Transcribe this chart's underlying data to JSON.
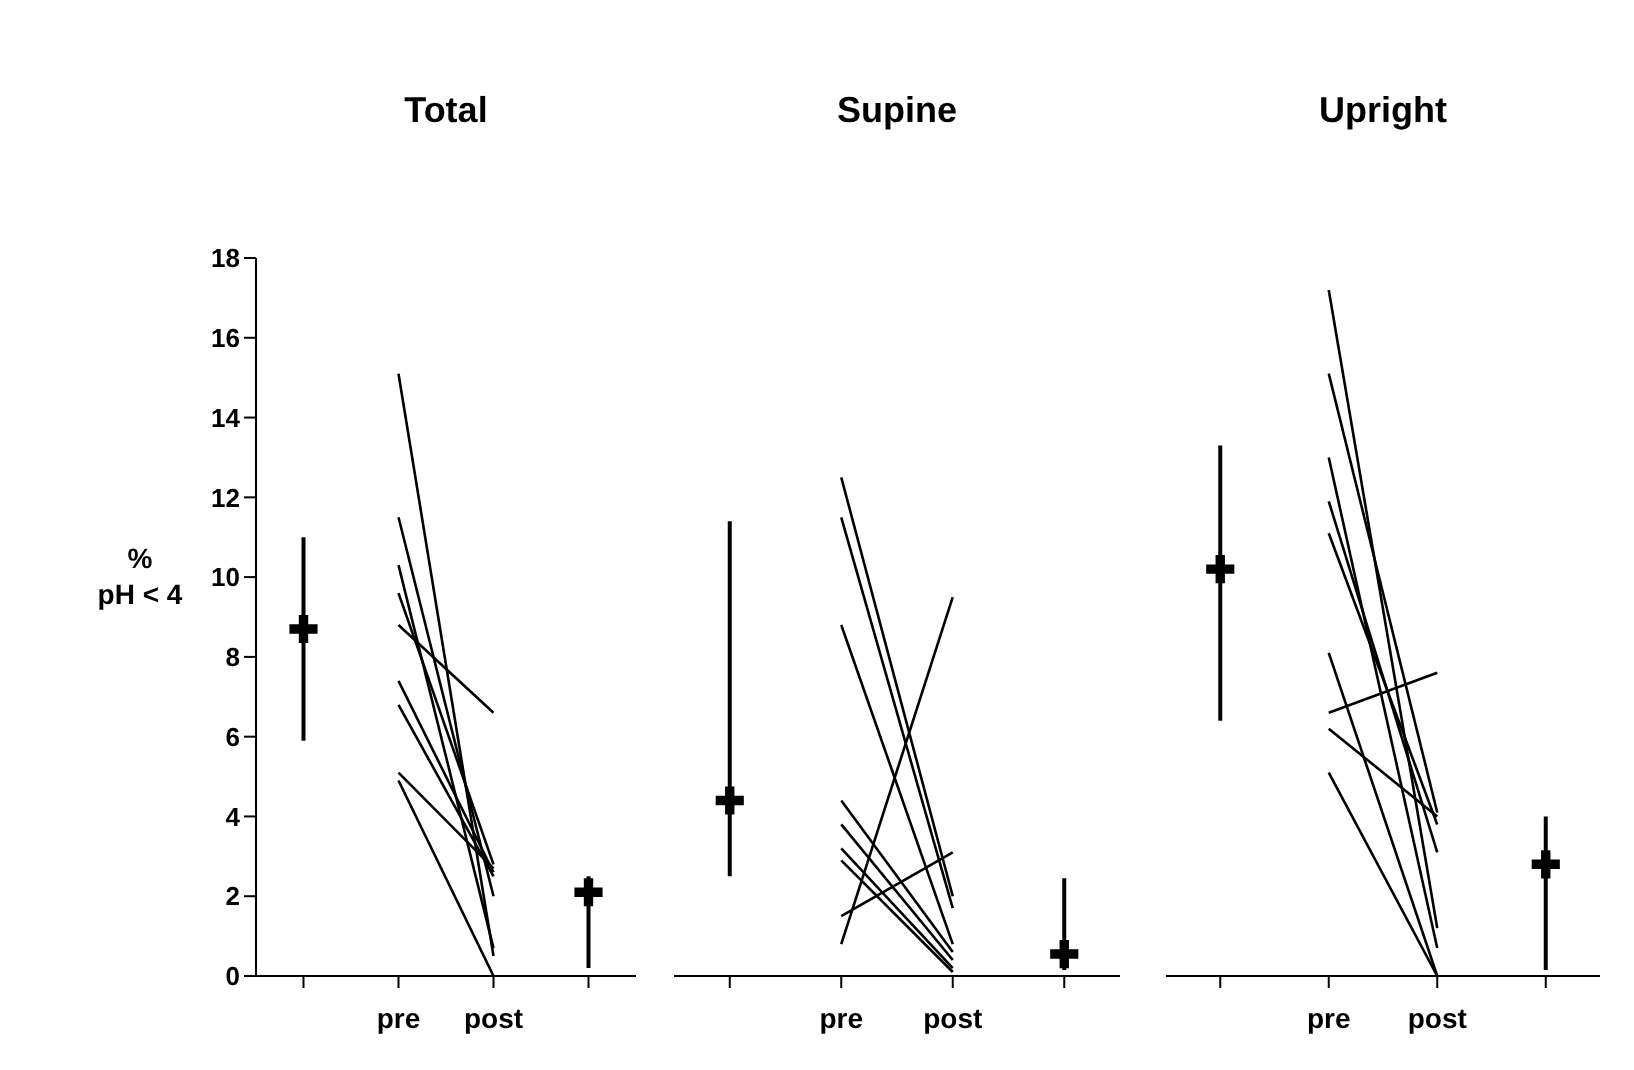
{
  "chart_data": [
    {
      "type": "line",
      "title": "Total",
      "ylabel": "%\npH < 4",
      "categories": [
        null,
        "pre",
        "post",
        null
      ],
      "ylim": [
        0,
        18
      ],
      "yticks": [
        0,
        2,
        4,
        6,
        8,
        10,
        12,
        14,
        16,
        18
      ],
      "series": [
        {
          "color": "#000000",
          "values": [
            null,
            15.1,
            0.5,
            null
          ]
        },
        {
          "color": "#000000",
          "values": [
            null,
            11.5,
            2.0,
            null
          ]
        },
        {
          "color": "#000000",
          "values": [
            null,
            10.3,
            0.7,
            null
          ]
        },
        {
          "color": "#000000",
          "values": [
            null,
            9.6,
            2.8,
            null
          ]
        },
        {
          "color": "#000000",
          "values": [
            null,
            8.8,
            6.6,
            null
          ]
        },
        {
          "color": "#000000",
          "values": [
            null,
            7.4,
            2.6,
            null
          ]
        },
        {
          "color": "#000000",
          "values": [
            null,
            6.8,
            2.5,
            null
          ]
        },
        {
          "color": "#000000",
          "values": [
            null,
            5.1,
            2.7,
            null
          ]
        },
        {
          "color": "#000000",
          "values": [
            null,
            4.9,
            0,
            null
          ]
        },
        {
          "type": "scatter",
          "marker": "cross",
          "color": "#000000",
          "values": [
            8.7,
            null,
            null,
            2.1
          ],
          "errors": [
            [
              5.9,
              11.0
            ],
            null,
            null,
            [
              0.2,
              2.5
            ]
          ]
        }
      ]
    },
    {
      "type": "line",
      "title": "Supine",
      "tick_labels": "x",
      "categories": [
        null,
        "pre",
        "post",
        null
      ],
      "ylim": [
        0,
        18
      ],
      "series": [
        {
          "color": "#000000",
          "values": [
            null,
            12.5,
            2.0,
            null
          ]
        },
        {
          "color": "#000000",
          "values": [
            null,
            11.5,
            1.7,
            null
          ]
        },
        {
          "color": "#000000",
          "values": [
            null,
            8.8,
            0.8,
            null
          ]
        },
        {
          "color": "#000000",
          "values": [
            null,
            4.4,
            0.6,
            null
          ]
        },
        {
          "color": "#000000",
          "values": [
            null,
            3.8,
            0.4,
            null
          ]
        },
        {
          "color": "#000000",
          "values": [
            null,
            3.2,
            0.2,
            null
          ]
        },
        {
          "color": "#000000",
          "values": [
            null,
            2.9,
            0.1,
            null
          ]
        },
        {
          "color": "#000000",
          "values": [
            null,
            1.5,
            3.1,
            null
          ]
        },
        {
          "color": "#000000",
          "values": [
            null,
            0.8,
            9.5,
            null
          ]
        },
        {
          "type": "scatter",
          "marker": "cross",
          "color": "#000000",
          "values": [
            4.4,
            null,
            null,
            0.55
          ],
          "errors": [
            [
              2.5,
              11.4
            ],
            null,
            null,
            [
              0.15,
              2.45
            ]
          ]
        }
      ]
    },
    {
      "type": "line",
      "title": "Upright",
      "tick_labels": "x",
      "categories": [
        null,
        "pre",
        "post",
        null
      ],
      "ylim": [
        0,
        18
      ],
      "series": [
        {
          "color": "#000000",
          "values": [
            null,
            17.2,
            1.2,
            null
          ]
        },
        {
          "color": "#000000",
          "values": [
            null,
            15.1,
            4.1,
            null
          ]
        },
        {
          "color": "#000000",
          "values": [
            null,
            13.0,
            0.7,
            null
          ]
        },
        {
          "color": "#000000",
          "values": [
            null,
            11.9,
            3.1,
            null
          ]
        },
        {
          "color": "#000000",
          "values": [
            null,
            11.1,
            3.8,
            null
          ]
        },
        {
          "color": "#000000",
          "values": [
            null,
            8.1,
            0,
            null
          ]
        },
        {
          "color": "#000000",
          "values": [
            null,
            6.6,
            7.6,
            null
          ]
        },
        {
          "color": "#000000",
          "values": [
            null,
            6.2,
            4.0,
            null
          ]
        },
        {
          "color": "#000000",
          "values": [
            null,
            5.1,
            0,
            null
          ]
        },
        {
          "type": "scatter",
          "marker": "cross",
          "color": "#000000",
          "values": [
            10.2,
            null,
            null,
            2.8
          ],
          "errors": [
            [
              6.4,
              13.3
            ],
            null,
            null,
            [
              0.15,
              4.0
            ]
          ]
        }
      ]
    }
  ]
}
